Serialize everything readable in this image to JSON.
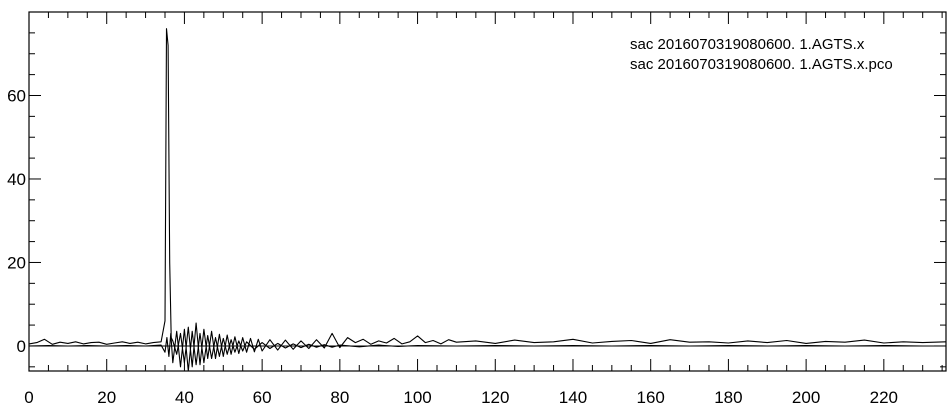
{
  "chart_data": {
    "type": "line",
    "title": "",
    "xlabel": "",
    "ylabel": "",
    "xlim": [
      0,
      236
    ],
    "ylim": [
      -6,
      80
    ],
    "x_ticks": [
      0,
      20,
      40,
      60,
      80,
      100,
      120,
      140,
      160,
      180,
      200,
      220
    ],
    "y_ticks": [
      0,
      20,
      40,
      60
    ],
    "grid": false,
    "legend_position": "top-right",
    "line_color": "#000000",
    "series": [
      {
        "name": "sac 2016070319080600. 1.AGTS.x",
        "x": [
          0,
          2,
          4,
          6,
          8,
          10,
          12,
          14,
          16,
          18,
          20,
          22,
          24,
          26,
          28,
          30,
          32,
          34,
          35,
          35.4,
          35.8,
          36.2,
          36.6,
          37,
          38,
          39,
          40,
          41,
          42,
          43,
          44,
          45,
          46,
          47,
          48,
          49,
          50,
          51,
          52,
          53,
          54,
          55,
          56,
          57,
          58,
          59,
          60,
          62,
          64,
          66,
          68,
          70,
          72,
          74,
          76,
          78,
          80,
          82,
          84,
          86,
          88,
          90,
          92,
          94,
          96,
          98,
          100,
          102,
          104,
          106,
          108,
          110,
          115,
          120,
          125,
          130,
          135,
          140,
          145,
          150,
          155,
          160,
          165,
          170,
          175,
          180,
          185,
          190,
          195,
          200,
          205,
          210,
          215,
          220,
          225,
          230,
          236
        ],
        "y": [
          0.5,
          0.8,
          1.6,
          0.4,
          0.9,
          0.6,
          1.0,
          0.5,
          0.8,
          0.9,
          0.4,
          0.7,
          1.0,
          0.6,
          0.9,
          0.5,
          0.8,
          1.0,
          6,
          76,
          72,
          20,
          2,
          1.2,
          -2,
          3,
          -4,
          4.5,
          -5,
          5.5,
          -4.5,
          4,
          -3,
          3.5,
          -3,
          2.8,
          -2.5,
          2.6,
          -2,
          2.2,
          -1.8,
          2.0,
          -1.5,
          1.8,
          -1.4,
          1.6,
          -1.2,
          1.5,
          -1.0,
          1.4,
          -0.8,
          1.2,
          -0.6,
          1.5,
          -0.5,
          3.0,
          -0.4,
          2.0,
          0.8,
          1.6,
          0.4,
          1.2,
          0.7,
          1.8,
          0.5,
          1.0,
          2.4,
          0.8,
          1.3,
          0.5,
          1.5,
          0.9,
          1.2,
          0.6,
          1.4,
          0.8,
          1.0,
          1.6,
          0.7,
          1.1,
          1.3,
          0.6,
          1.5,
          0.9,
          1.0,
          0.7,
          1.2,
          0.8,
          1.3,
          0.6,
          1.1,
          0.9,
          1.4,
          0.7,
          1.0,
          0.8,
          1.0
        ]
      },
      {
        "name": "sac 2016070319080600. 1.AGTS.x.pco",
        "x": [
          0,
          5,
          10,
          15,
          20,
          25,
          30,
          34,
          35,
          35.5,
          36,
          36.5,
          37,
          38,
          39,
          40,
          41,
          42,
          43,
          44,
          45,
          46,
          47,
          48,
          49,
          50,
          51,
          52,
          53,
          54,
          55,
          56,
          58,
          60,
          62,
          64,
          66,
          68,
          70,
          72,
          74,
          76,
          78,
          80,
          85,
          90,
          95,
          100,
          110,
          120,
          130,
          140,
          150,
          160,
          170,
          180,
          190,
          200,
          210,
          220,
          230,
          236
        ],
        "y": [
          0,
          0.1,
          0,
          0.1,
          0,
          0.1,
          0,
          0.2,
          -1.5,
          2,
          -2.5,
          3,
          -4,
          3.5,
          -5,
          4,
          -6,
          3.5,
          -4.5,
          3,
          -4,
          2.5,
          -3,
          2,
          -2.5,
          1.8,
          -2,
          1.5,
          -1.5,
          1.2,
          -1.2,
          1.0,
          -0.8,
          0.8,
          -0.6,
          0.6,
          -0.5,
          0.5,
          -0.4,
          0.4,
          -0.3,
          0.3,
          -0.3,
          0.2,
          -0.2,
          0.2,
          -0.1,
          0.1,
          0,
          0.1,
          0,
          0.1,
          0,
          0.1,
          0,
          0.1,
          0,
          0.1,
          0,
          0.1,
          0,
          0
        ]
      }
    ]
  }
}
